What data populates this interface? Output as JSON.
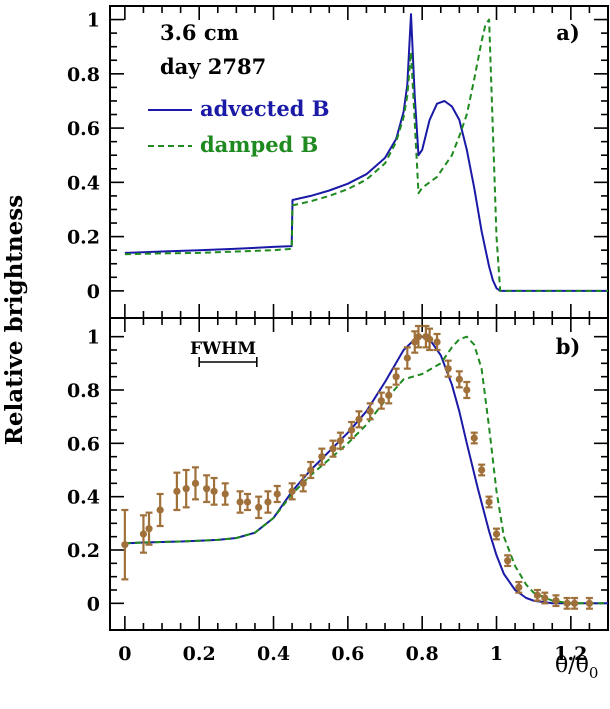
{
  "y_axis_label": "Relative brightness",
  "x_axis_label": "θ/θ",
  "x_axis_label_subscript": "0",
  "colors": {
    "advected": "#1a1aa6",
    "damped": "#1f8a1f",
    "observed": "#a0703a"
  },
  "chart_data": [
    {
      "type": "line",
      "panel_label": "a)",
      "annotation_lines": [
        "3.6 cm",
        "day 2787"
      ],
      "xlim": [
        -0.04,
        1.3
      ],
      "ylim": [
        -0.1,
        1.05
      ],
      "y_ticks": [
        0,
        0.2,
        0.4,
        0.6,
        0.8,
        1
      ],
      "y_tick_labels": [
        "0",
        "0.2",
        "0.4",
        "0.6",
        "0.8",
        "1"
      ],
      "legend_position": "left, below annotation",
      "series": [
        {
          "name": "advected B",
          "style": "solid",
          "x": [
            0,
            0.1,
            0.2,
            0.3,
            0.4,
            0.449,
            0.451,
            0.5,
            0.55,
            0.6,
            0.65,
            0.7,
            0.73,
            0.75,
            0.76,
            0.77,
            0.78,
            0.79,
            0.8,
            0.82,
            0.84,
            0.86,
            0.88,
            0.9,
            0.92,
            0.94,
            0.96,
            0.98,
            0.99,
            1.0,
            1.01,
            1.1,
            1.2,
            1.3
          ],
          "y": [
            0.14,
            0.145,
            0.15,
            0.155,
            0.162,
            0.165,
            0.335,
            0.35,
            0.37,
            0.395,
            0.43,
            0.49,
            0.56,
            0.66,
            0.76,
            1.02,
            0.72,
            0.5,
            0.52,
            0.63,
            0.69,
            0.7,
            0.68,
            0.63,
            0.52,
            0.38,
            0.22,
            0.09,
            0.04,
            0.01,
            0,
            0,
            0,
            0
          ]
        },
        {
          "name": "damped B",
          "style": "dashed",
          "x": [
            0,
            0.1,
            0.2,
            0.3,
            0.4,
            0.449,
            0.451,
            0.5,
            0.55,
            0.6,
            0.65,
            0.7,
            0.73,
            0.75,
            0.76,
            0.77,
            0.79,
            0.8,
            0.84,
            0.88,
            0.9,
            0.92,
            0.94,
            0.96,
            0.97,
            0.98,
            0.99,
            1.0,
            1.01,
            1.1,
            1.2,
            1.3
          ],
          "y": [
            0.135,
            0.138,
            0.14,
            0.145,
            0.15,
            0.155,
            0.315,
            0.33,
            0.35,
            0.375,
            0.41,
            0.47,
            0.55,
            0.64,
            0.72,
            0.88,
            0.36,
            0.38,
            0.42,
            0.5,
            0.57,
            0.65,
            0.78,
            0.92,
            0.98,
            1.0,
            0.6,
            0.2,
            0,
            0,
            0,
            0
          ]
        }
      ]
    },
    {
      "type": "line",
      "panel_label": "b)",
      "xlim": [
        -0.04,
        1.3
      ],
      "ylim": [
        -0.1,
        1.07
      ],
      "x_ticks": [
        0,
        0.2,
        0.4,
        0.6,
        0.8,
        1,
        1.2
      ],
      "x_tick_labels": [
        "0",
        "0.2",
        "0.4",
        "0.6",
        "0.8",
        "1",
        "1.2"
      ],
      "y_ticks": [
        0,
        0.2,
        0.4,
        0.6,
        0.8,
        1
      ],
      "y_tick_labels": [
        "0",
        "0.2",
        "0.4",
        "0.6",
        "0.8",
        "1"
      ],
      "fwhm_label": "FWHM",
      "fwhm_range": [
        0.2,
        0.355
      ],
      "fwhm_y": 0.905,
      "series": [
        {
          "name": "advected B",
          "style": "solid",
          "x": [
            0,
            0.05,
            0.1,
            0.15,
            0.2,
            0.25,
            0.3,
            0.35,
            0.4,
            0.45,
            0.5,
            0.55,
            0.6,
            0.65,
            0.7,
            0.75,
            0.78,
            0.8,
            0.82,
            0.85,
            0.88,
            0.9,
            0.92,
            0.95,
            0.98,
            1.0,
            1.02,
            1.05,
            1.08,
            1.1,
            1.15,
            1.2,
            1.25,
            1.3
          ],
          "y": [
            0.225,
            0.228,
            0.23,
            0.232,
            0.235,
            0.238,
            0.245,
            0.265,
            0.32,
            0.42,
            0.5,
            0.57,
            0.64,
            0.72,
            0.83,
            0.95,
            0.99,
            1.0,
            0.99,
            0.93,
            0.82,
            0.72,
            0.6,
            0.43,
            0.27,
            0.18,
            0.11,
            0.05,
            0.02,
            0.01,
            0,
            0,
            0,
            0
          ]
        },
        {
          "name": "damped B",
          "style": "dashed",
          "x": [
            0,
            0.05,
            0.1,
            0.15,
            0.2,
            0.25,
            0.3,
            0.35,
            0.4,
            0.45,
            0.5,
            0.55,
            0.6,
            0.65,
            0.7,
            0.75,
            0.8,
            0.85,
            0.88,
            0.9,
            0.92,
            0.94,
            0.96,
            0.98,
            1.0,
            1.02,
            1.05,
            1.08,
            1.1,
            1.15,
            1.2,
            1.25,
            1.3
          ],
          "y": [
            0.225,
            0.228,
            0.23,
            0.232,
            0.235,
            0.238,
            0.245,
            0.265,
            0.32,
            0.41,
            0.48,
            0.54,
            0.6,
            0.67,
            0.76,
            0.84,
            0.86,
            0.9,
            0.96,
            0.99,
            1.0,
            0.97,
            0.88,
            0.66,
            0.42,
            0.25,
            0.14,
            0.07,
            0.04,
            0.01,
            0,
            0,
            0
          ]
        },
        {
          "name": "observed",
          "style": "points_with_errorbars",
          "x": [
            0,
            0.05,
            0.065,
            0.095,
            0.14,
            0.165,
            0.19,
            0.22,
            0.24,
            0.27,
            0.31,
            0.33,
            0.36,
            0.385,
            0.41,
            0.45,
            0.48,
            0.5,
            0.53,
            0.56,
            0.58,
            0.61,
            0.63,
            0.66,
            0.69,
            0.71,
            0.73,
            0.76,
            0.78,
            0.79,
            0.81,
            0.82,
            0.84,
            0.87,
            0.9,
            0.92,
            0.94,
            0.96,
            0.98,
            1.0,
            1.03,
            1.06,
            1.11,
            1.13,
            1.16,
            1.19,
            1.21,
            1.25
          ],
          "y": [
            0.22,
            0.26,
            0.28,
            0.35,
            0.42,
            0.43,
            0.45,
            0.43,
            0.42,
            0.41,
            0.38,
            0.38,
            0.36,
            0.38,
            0.41,
            0.42,
            0.45,
            0.5,
            0.55,
            0.58,
            0.61,
            0.65,
            0.69,
            0.72,
            0.76,
            0.78,
            0.85,
            0.92,
            0.98,
            1.0,
            1.0,
            0.99,
            0.98,
            0.88,
            0.84,
            0.8,
            0.62,
            0.5,
            0.38,
            0.26,
            0.16,
            0.06,
            0.03,
            0.02,
            0.01,
            0,
            0,
            0
          ],
          "err": [
            0.13,
            0.07,
            0.06,
            0.06,
            0.07,
            0.07,
            0.06,
            0.05,
            0.05,
            0.04,
            0.04,
            0.03,
            0.04,
            0.04,
            0.03,
            0.03,
            0.03,
            0.03,
            0.03,
            0.03,
            0.03,
            0.03,
            0.03,
            0.03,
            0.03,
            0.03,
            0.03,
            0.04,
            0.04,
            0.04,
            0.04,
            0.04,
            0.03,
            0.03,
            0.03,
            0.03,
            0.02,
            0.02,
            0.02,
            0.02,
            0.02,
            0.02,
            0.02,
            0.02,
            0.02,
            0.02,
            0.02,
            0.02
          ]
        }
      ]
    }
  ]
}
